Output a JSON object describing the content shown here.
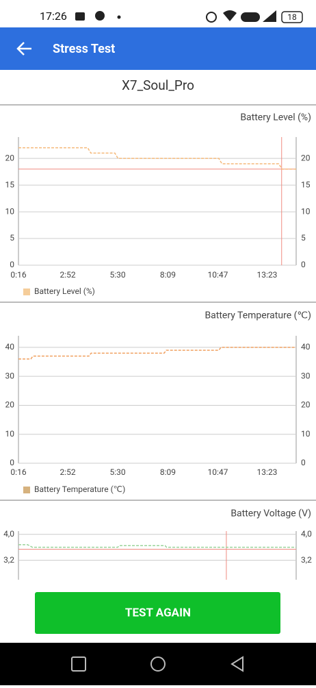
{
  "status_bar": {
    "time": "17:26",
    "battery": "18"
  },
  "app_bar": {
    "title": "Stress Test"
  },
  "device": "X7_Soul_Pro",
  "chart_data": [
    {
      "type": "line",
      "title": "Battery Level (%)",
      "x": [
        16,
        235,
        245,
        321,
        331,
        650,
        660,
        840,
        850,
        895
      ],
      "series": [
        {
          "name": "Battery Level (%)",
          "color": "#f5b97a",
          "legend_color": "#f5cd9a",
          "values": [
            22,
            22,
            21,
            21,
            20,
            20,
            19,
            19,
            18,
            18
          ]
        }
      ],
      "xlim": [
        16,
        895
      ],
      "xticks": [
        {
          "value": 16,
          "label": "0:16"
        },
        {
          "value": 172,
          "label": "2:52"
        },
        {
          "value": 330,
          "label": "5:30"
        },
        {
          "value": 489,
          "label": "8:09"
        },
        {
          "value": 647,
          "label": "10:47"
        },
        {
          "value": 803,
          "label": "13:23"
        }
      ],
      "ylim": [
        0,
        24
      ],
      "yticks": [
        0,
        5,
        10,
        15,
        20
      ],
      "grid": true,
      "limit_line": 18,
      "marker_x": 849,
      "limit_color": "#f08a80"
    },
    {
      "type": "line",
      "title": "Battery Temperature (℃)",
      "x": [
        16,
        55,
        62,
        239,
        246,
        477,
        484,
        650,
        657,
        895
      ],
      "series": [
        {
          "name": "Battery Temperature (℃)",
          "color": "#f0a060",
          "legend_color": "#d6b27e",
          "values": [
            36,
            36,
            37,
            37,
            38,
            38,
            39,
            39,
            40,
            40
          ]
        }
      ],
      "xlim": [
        16,
        895
      ],
      "xticks": [
        {
          "value": 16,
          "label": "0:16"
        },
        {
          "value": 172,
          "label": "2:52"
        },
        {
          "value": 330,
          "label": "5:30"
        },
        {
          "value": 489,
          "label": "8:09"
        },
        {
          "value": 647,
          "label": "10:47"
        },
        {
          "value": 803,
          "label": "13:23"
        }
      ],
      "ylim": [
        0,
        44
      ],
      "yticks": [
        0,
        10,
        20,
        30,
        40
      ],
      "grid": true
    },
    {
      "type": "line",
      "title": "Battery Voltage (V)",
      "x": [
        16,
        45,
        60,
        330,
        335,
        480,
        485,
        895
      ],
      "series": [
        {
          "name": "Battery Voltage (V)",
          "color": "#9ad39a",
          "values": [
            3.68,
            3.68,
            3.6,
            3.6,
            3.65,
            3.65,
            3.6,
            3.6
          ]
        }
      ],
      "xlim": [
        16,
        895
      ],
      "ylim": [
        2.6,
        4.1
      ],
      "yticks": [
        {
          "value": 3.2,
          "label": "3,2"
        },
        {
          "value": 4.0,
          "label": "4,0"
        }
      ],
      "grid": true,
      "limit_line": 3.54,
      "marker_x": 674,
      "limit_color": "#f08a80"
    }
  ],
  "button": "TEST AGAIN"
}
